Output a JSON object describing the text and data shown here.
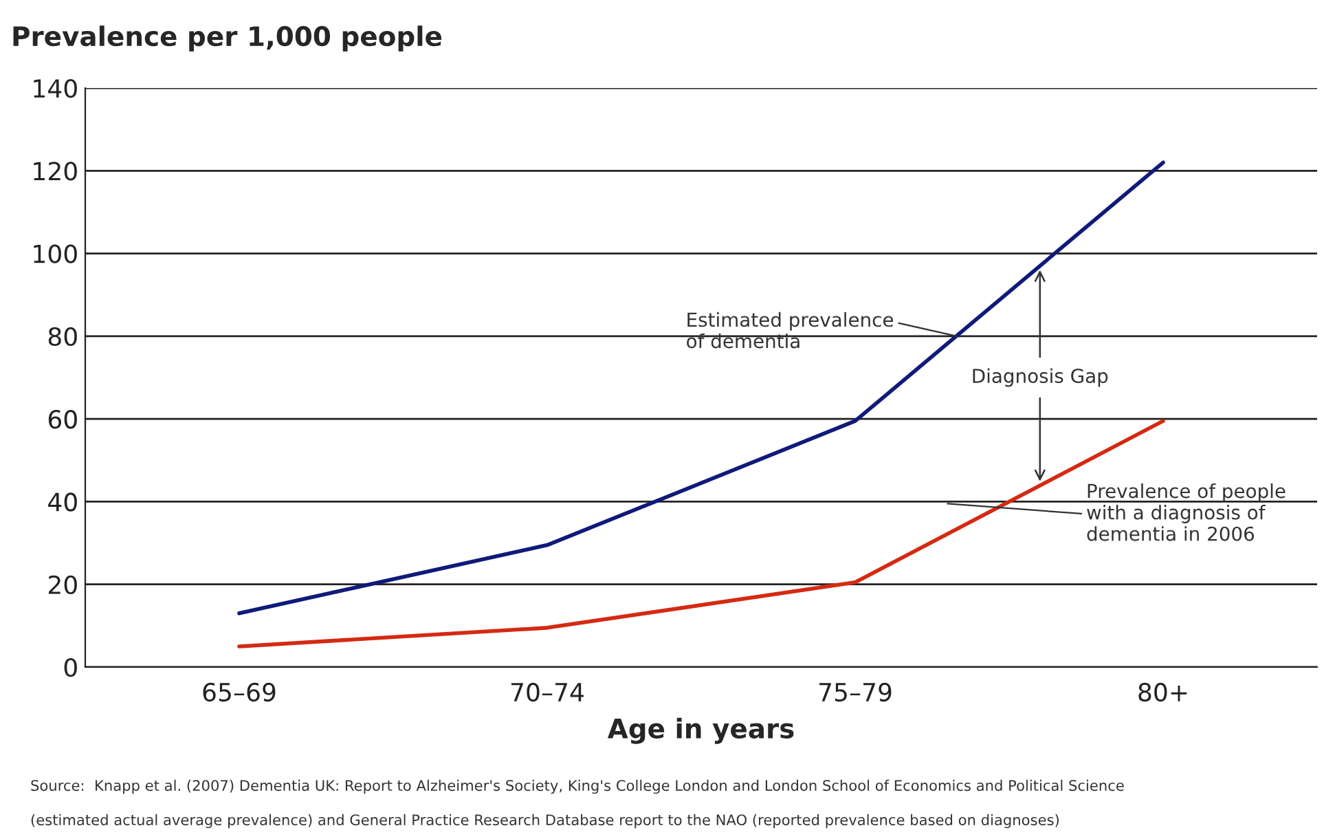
{
  "chart_data": {
    "type": "line",
    "title": "Prevalence per 1,000 people",
    "xlabel": "Age in years",
    "categories": [
      "65–69",
      "70–74",
      "75–79",
      "80+"
    ],
    "series": [
      {
        "name": "Estimated prevalence of dementia",
        "color": "#101a7a",
        "values": [
          13,
          29.5,
          59.5,
          122
        ]
      },
      {
        "name": "Prevalence of people with a diagnosis of dementia in 2006",
        "color": "#d42a12",
        "values": [
          5,
          9.5,
          20.5,
          59.5
        ]
      }
    ],
    "ylim": [
      0,
      140
    ],
    "yticks": [
      0,
      20,
      40,
      60,
      80,
      100,
      120,
      140
    ],
    "grid": "y",
    "legend": false,
    "annotations": [
      {
        "text": "Diagnosis Gap",
        "y": 96
      },
      "Source:  Knapp et al. (2007) Dementia UK: Report to Alzheimer's Society, King's College London and London School of Economics and Political Science",
      "(estimated actual average prevalence) and General Practice Research Database report to the NAO (reported prevalence based on diagnoses)"
    ]
  }
}
